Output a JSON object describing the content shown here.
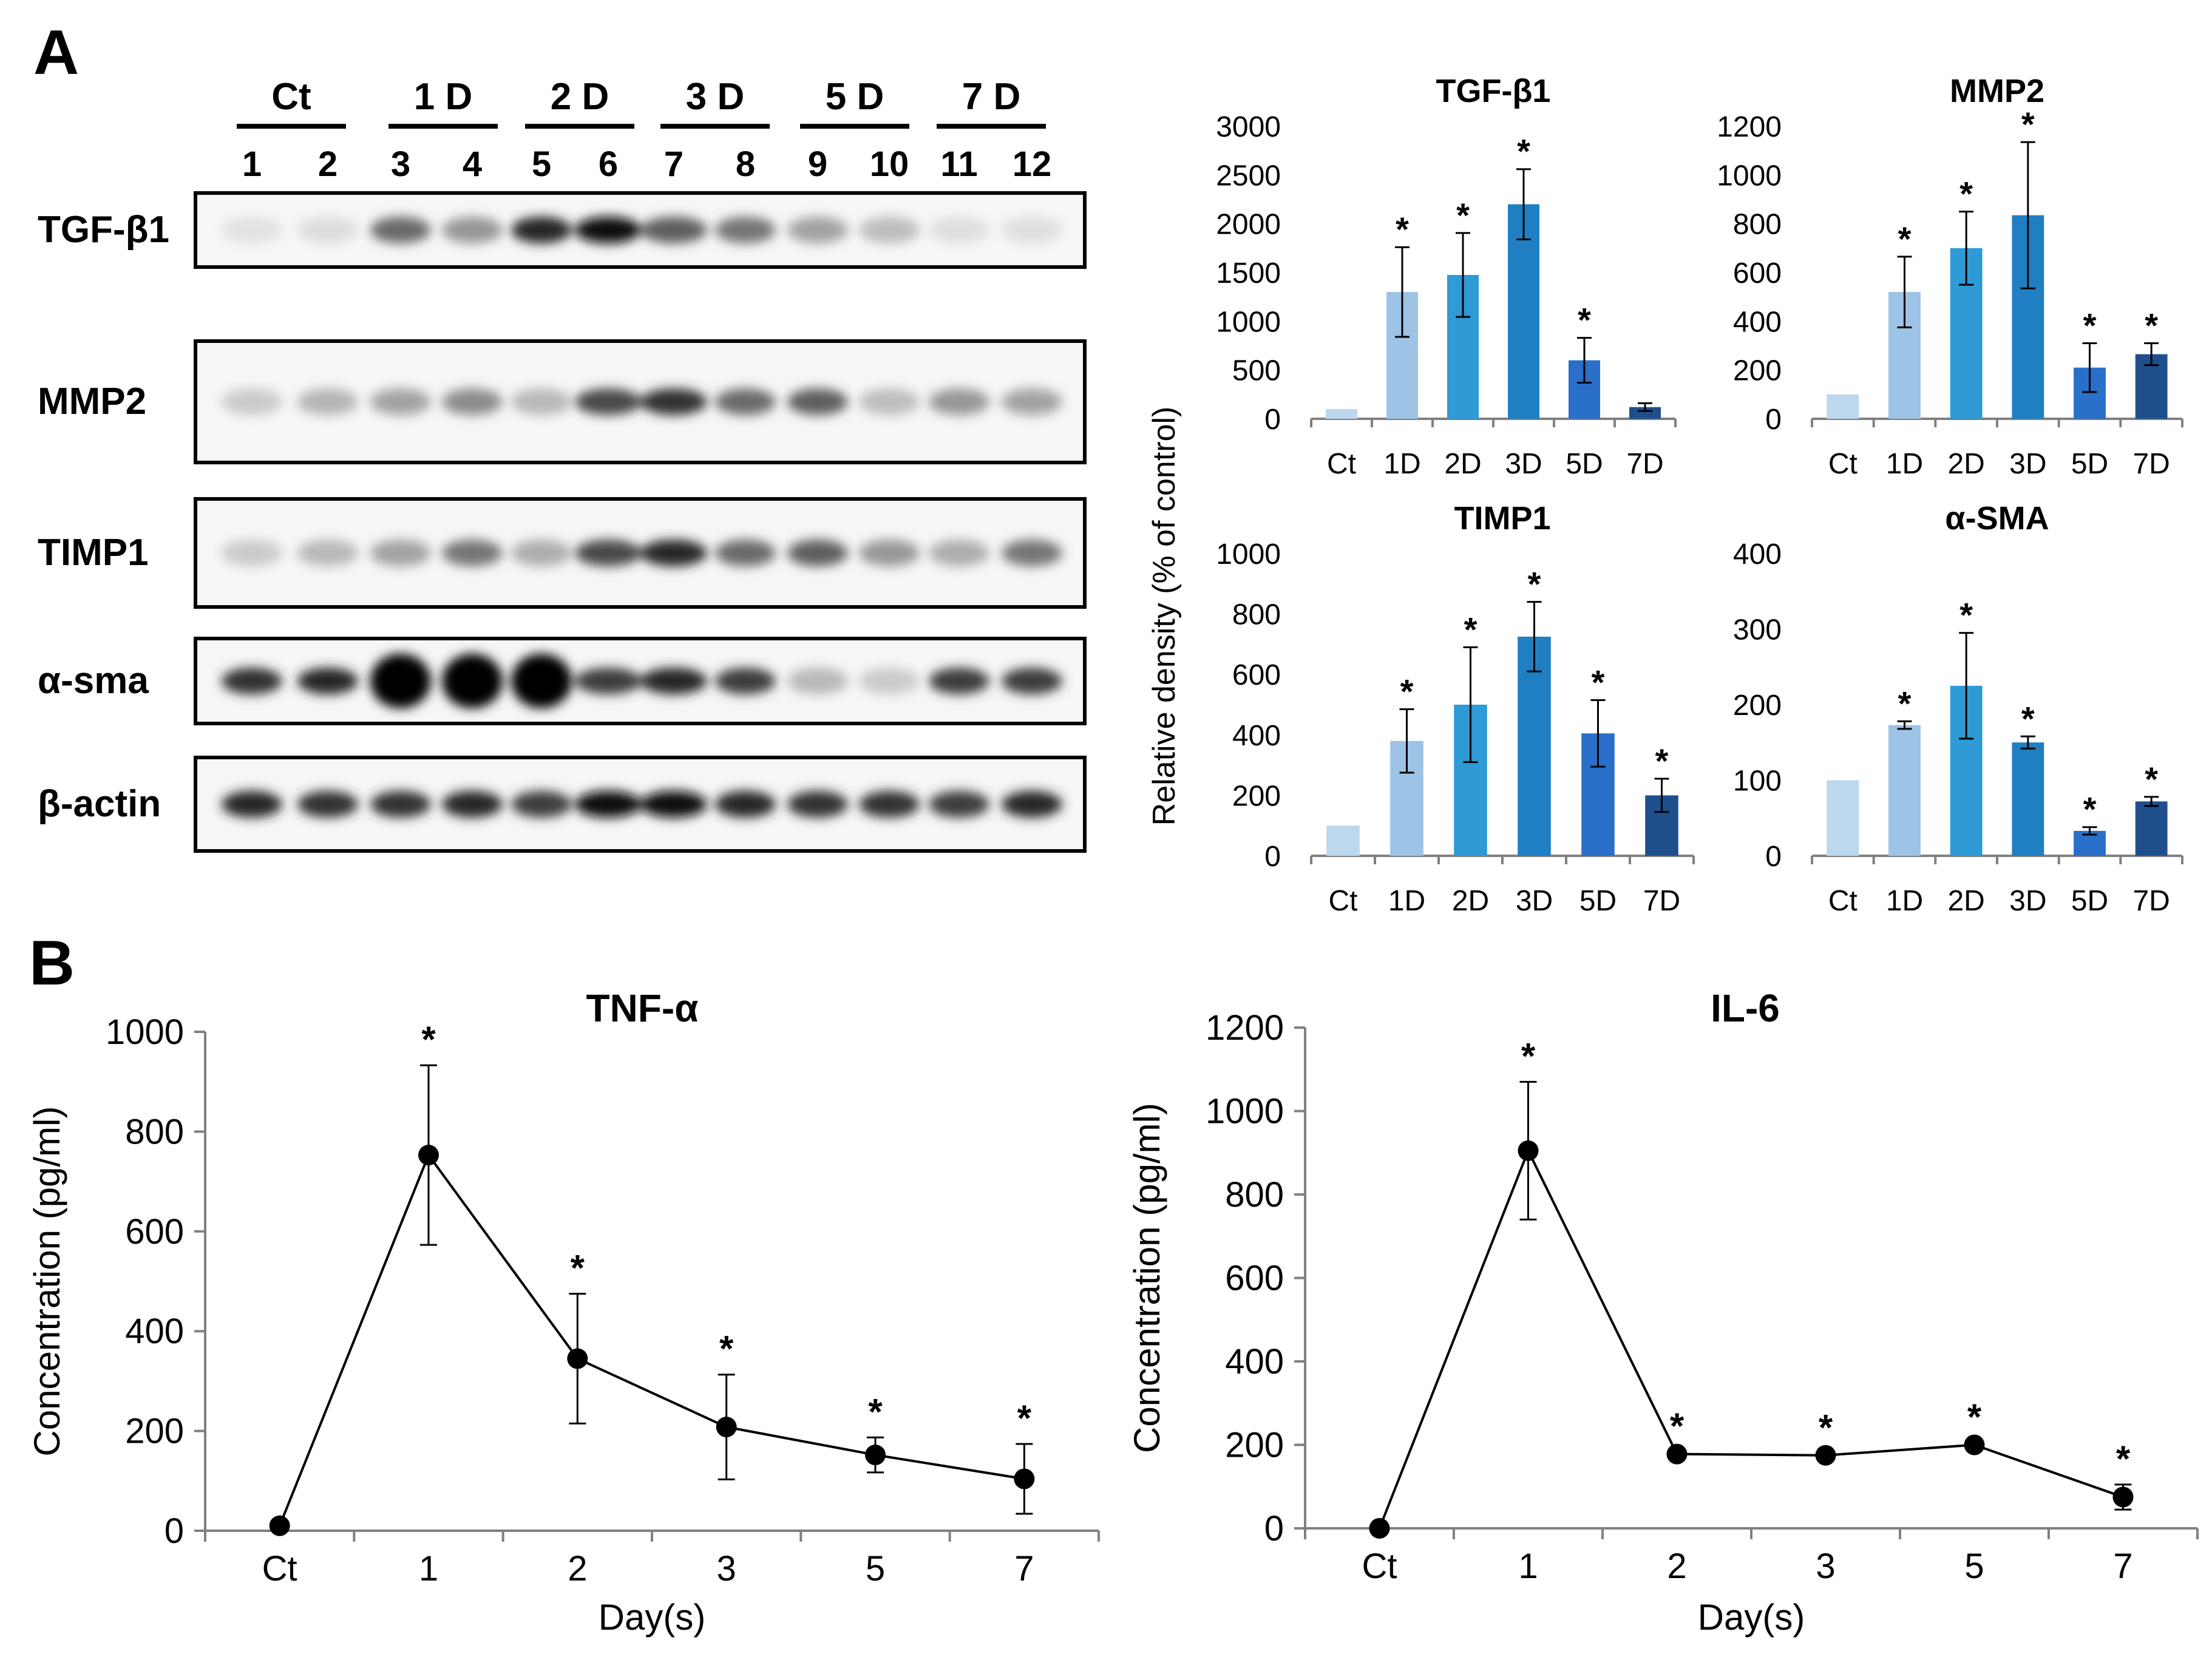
{
  "panel_a": {
    "letter": "A",
    "western_blot": {
      "groups": [
        "Ct",
        "1 D",
        "2 D",
        "3 D",
        "5 D",
        "7 D"
      ],
      "lanes": [
        "1",
        "2",
        "3",
        "4",
        "5",
        "6",
        "7",
        "8",
        "9",
        "10",
        "11",
        "12"
      ],
      "proteins": [
        "TGF-β1",
        "MMP2",
        "TIMP1",
        "α-sma",
        "β-actin"
      ]
    }
  },
  "panel_b": {
    "letter": "B"
  },
  "shared": {
    "bar_ylabel": "Relative density (% of control)",
    "sig_marker": "*"
  },
  "chart_data": [
    {
      "type": "bar",
      "title": "TGF-β1",
      "categories": [
        "Ct",
        "1D",
        "2D",
        "3D",
        "5D",
        "7D"
      ],
      "values": [
        100,
        1300,
        1475,
        2200,
        600,
        120
      ],
      "errors": [
        0,
        460,
        430,
        360,
        230,
        40
      ],
      "significant": [
        false,
        true,
        true,
        true,
        true,
        false
      ],
      "ylim": [
        0,
        3000
      ],
      "yticks": [
        0,
        500,
        1000,
        1500,
        2000,
        2500,
        3000
      ],
      "ylabel": "Relative density (% of control)"
    },
    {
      "type": "bar",
      "title": "MMP2",
      "categories": [
        "Ct",
        "1D",
        "2D",
        "3D",
        "5D",
        "7D"
      ],
      "values": [
        100,
        520,
        700,
        835,
        210,
        265
      ],
      "errors": [
        0,
        145,
        150,
        300,
        100,
        45
      ],
      "significant": [
        false,
        true,
        true,
        true,
        true,
        true
      ],
      "ylim": [
        0,
        1200
      ],
      "yticks": [
        0,
        200,
        400,
        600,
        800,
        1000,
        1200
      ],
      "ylabel": "Relative density (% of control)"
    },
    {
      "type": "bar",
      "title": "TIMP1",
      "categories": [
        "Ct",
        "1D",
        "2D",
        "3D",
        "5D",
        "7D"
      ],
      "values": [
        100,
        380,
        500,
        725,
        405,
        200
      ],
      "errors": [
        0,
        105,
        190,
        115,
        110,
        55
      ],
      "significant": [
        false,
        true,
        true,
        true,
        true,
        true
      ],
      "ylim": [
        0,
        1000
      ],
      "yticks": [
        0,
        200,
        400,
        600,
        800,
        1000
      ],
      "ylabel": "Relative density (% of control)"
    },
    {
      "type": "bar",
      "title": "α-SMA",
      "categories": [
        "Ct",
        "1D",
        "2D",
        "3D",
        "5D",
        "7D"
      ],
      "values": [
        100,
        173,
        225,
        150,
        33,
        72
      ],
      "errors": [
        0,
        5,
        70,
        8,
        5,
        6
      ],
      "significant": [
        false,
        true,
        true,
        true,
        true,
        true
      ],
      "ylim": [
        0,
        400
      ],
      "yticks": [
        0,
        100,
        200,
        300,
        400
      ],
      "ylabel": "Relative density (% of control)"
    },
    {
      "type": "line",
      "title": "TNF-α",
      "categories": [
        "Ct",
        "1",
        "2",
        "3",
        "5",
        "7"
      ],
      "values": [
        10,
        753,
        345,
        208,
        152,
        104
      ],
      "errors": [
        0,
        180,
        130,
        105,
        35,
        70
      ],
      "significant": [
        false,
        true,
        true,
        true,
        true,
        true
      ],
      "ylim": [
        0,
        1000
      ],
      "yticks": [
        0,
        200,
        400,
        600,
        800,
        1000
      ],
      "xlabel": "Day(s)",
      "ylabel": "Concentration (pg/ml)"
    },
    {
      "type": "line",
      "title": "IL-6",
      "categories": [
        "Ct",
        "1",
        "2",
        "3",
        "5",
        "7"
      ],
      "values": [
        0,
        905,
        178,
        175,
        200,
        75
      ],
      "errors": [
        0,
        165,
        5,
        5,
        5,
        30
      ],
      "significant": [
        false,
        true,
        true,
        true,
        true,
        true
      ],
      "ylim": [
        0,
        1200
      ],
      "yticks": [
        0,
        200,
        400,
        600,
        800,
        1000,
        1200
      ],
      "xlabel": "Day(s)",
      "ylabel": "Concentration (pg/ml)"
    }
  ],
  "colors": {
    "bars": [
      "#bdd7ee",
      "#9dc3e6",
      "#2e9ad6",
      "#1f7fc2",
      "#2a6fc9",
      "#1f4e8c"
    ],
    "axis": "#808080",
    "ink": "#000000"
  }
}
